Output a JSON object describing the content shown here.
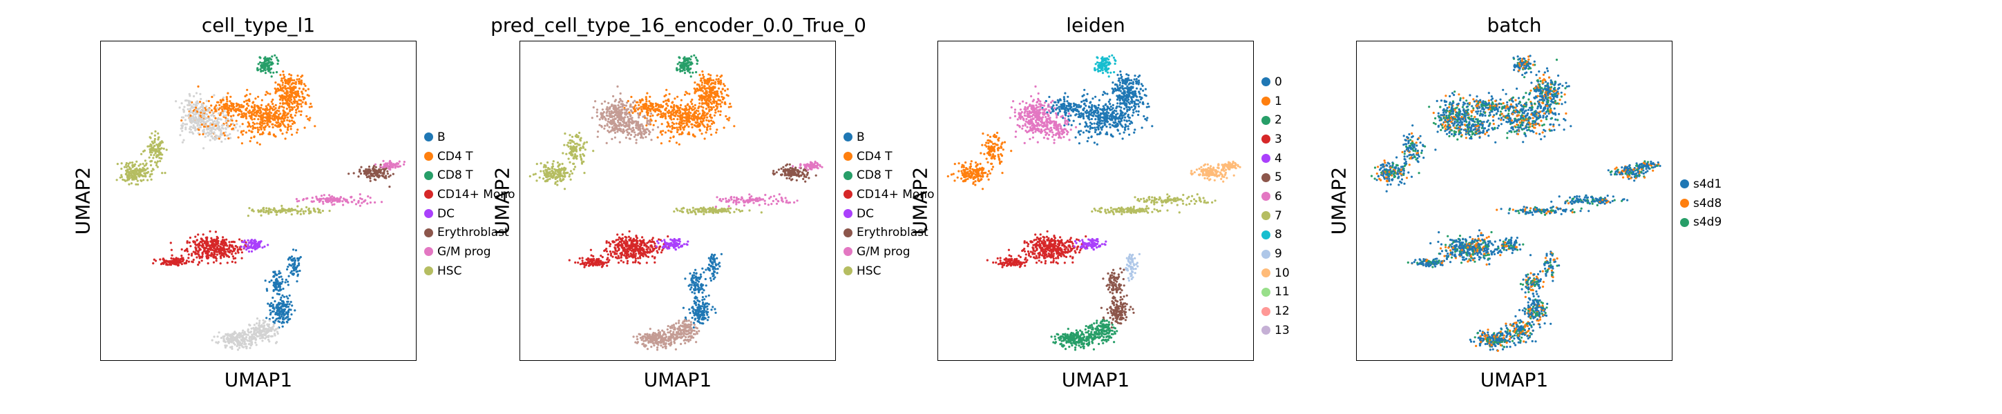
{
  "category_colors": {
    "B": "#1f77b4",
    "CD4 T": "#ff7f0e",
    "CD8 T": "#279e68",
    "CD14+ Mono": "#d62728",
    "DC": "#aa40fc",
    "Erythroblast": "#8c564b",
    "G/M prog": "#e377c2",
    "HSC": "#b5bd61",
    "unlabeled": "#d3d3d3"
  },
  "leiden_colors": [
    "#1f77b4",
    "#ff7f0e",
    "#279e68",
    "#d62728",
    "#aa40fc",
    "#8c564b",
    "#e377c2",
    "#b5bd61",
    "#17becf",
    "#aec7e8",
    "#ffbb78",
    "#98df8a",
    "#ff9896",
    "#c5b0d5"
  ],
  "batch_colors": {
    "s4d1": "#1f77b4",
    "s4d8": "#ff7f0e",
    "s4d9": "#279e68"
  },
  "chart_data": [
    {
      "type": "scatter",
      "title": "cell_type_l1",
      "xlabel": "UMAP1",
      "ylabel": "UMAP2",
      "legend_placement": "right",
      "legend": [
        "B",
        "CD4 T",
        "CD8 T",
        "CD14+ Mono",
        "DC",
        "Erythroblast",
        "G/M prog",
        "HSC"
      ],
      "grid": false
    },
    {
      "type": "scatter",
      "title": "pred_cell_type_16_encoder_0.0_True_0",
      "xlabel": "UMAP1",
      "ylabel": "UMAP2",
      "legend_placement": "right",
      "legend": [
        "B",
        "CD4 T",
        "CD8 T",
        "CD14+ Mono",
        "DC",
        "Erythroblast",
        "G/M prog",
        "HSC"
      ],
      "grid": false
    },
    {
      "type": "scatter",
      "title": "leiden",
      "xlabel": "UMAP1",
      "ylabel": "UMAP2",
      "legend_placement": "right",
      "legend": [
        "0",
        "1",
        "2",
        "3",
        "4",
        "5",
        "6",
        "7",
        "8",
        "9",
        "10",
        "11",
        "12",
        "13"
      ],
      "grid": false
    },
    {
      "type": "scatter",
      "title": "batch",
      "xlabel": "UMAP1",
      "ylabel": "UMAP2",
      "legend_placement": "right",
      "legend": [
        "s4d1",
        "s4d8",
        "s4d9"
      ],
      "grid": false
    }
  ]
}
